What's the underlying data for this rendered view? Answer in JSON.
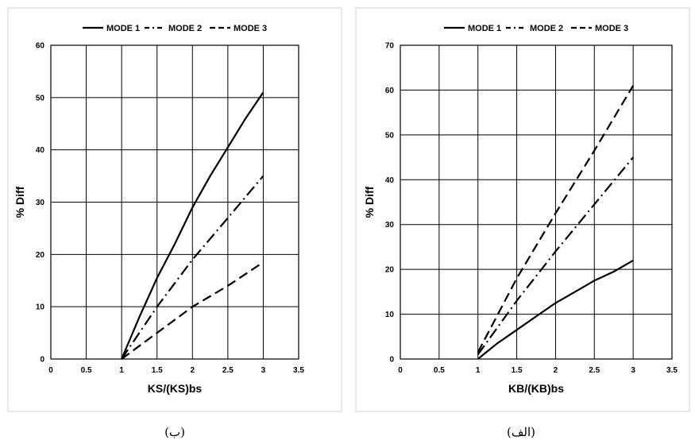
{
  "chart_data": [
    {
      "type": "line",
      "caption": "(ب)",
      "xlabel": "KS/(KS)bs",
      "ylabel": "% Diff",
      "xlim": [
        0,
        3.5
      ],
      "ylim": [
        0,
        60
      ],
      "xticks": [
        "0",
        "0.5",
        "1",
        "1.5",
        "2",
        "2.5",
        "3",
        "3.5"
      ],
      "yticks": [
        "0",
        "10",
        "20",
        "30",
        "40",
        "50",
        "60"
      ],
      "grid": true,
      "legend_position": "top",
      "series": [
        {
          "name": "MODE 1",
          "style": "solid",
          "x": [
            1,
            1.25,
            1.5,
            1.75,
            2,
            2.25,
            2.5,
            2.75,
            3
          ],
          "y": [
            0,
            8,
            15.5,
            22,
            29,
            35,
            40.5,
            46,
            51
          ]
        },
        {
          "name": "MODE 2",
          "style": "dashdot",
          "x": [
            1,
            1.5,
            2,
            2.5,
            3
          ],
          "y": [
            0,
            10,
            19,
            27,
            35
          ]
        },
        {
          "name": "MODE 3",
          "style": "dashed",
          "x": [
            1,
            1.5,
            2,
            2.5,
            3
          ],
          "y": [
            0,
            5,
            10,
            14,
            18.5
          ]
        }
      ]
    },
    {
      "type": "line",
      "caption": "(الف)",
      "xlabel": "KB/(KB)bs",
      "ylabel": "% Diff",
      "xlim": [
        0,
        3.5
      ],
      "ylim": [
        0,
        70
      ],
      "xticks": [
        "0",
        "0.5",
        "1",
        "1.5",
        "2",
        "2.5",
        "3",
        "3.5"
      ],
      "yticks": [
        "0",
        "10",
        "20",
        "30",
        "40",
        "50",
        "60",
        "70"
      ],
      "grid": true,
      "legend_position": "top",
      "series": [
        {
          "name": "MODE 1",
          "style": "solid",
          "x": [
            1,
            1.25,
            1.5,
            1.75,
            2,
            2.25,
            2.5,
            2.75,
            3
          ],
          "y": [
            0,
            3.5,
            6.5,
            9.5,
            12.5,
            15,
            17.5,
            19.5,
            22
          ]
        },
        {
          "name": "MODE 2",
          "style": "dashdot",
          "x": [
            1,
            1.5,
            2,
            2.5,
            3
          ],
          "y": [
            1,
            13,
            24,
            34.5,
            45
          ]
        },
        {
          "name": "MODE 3",
          "style": "dashed",
          "x": [
            1,
            1.5,
            2,
            2.5,
            3
          ],
          "y": [
            1.5,
            18,
            32.5,
            46.5,
            61
          ]
        }
      ]
    }
  ]
}
